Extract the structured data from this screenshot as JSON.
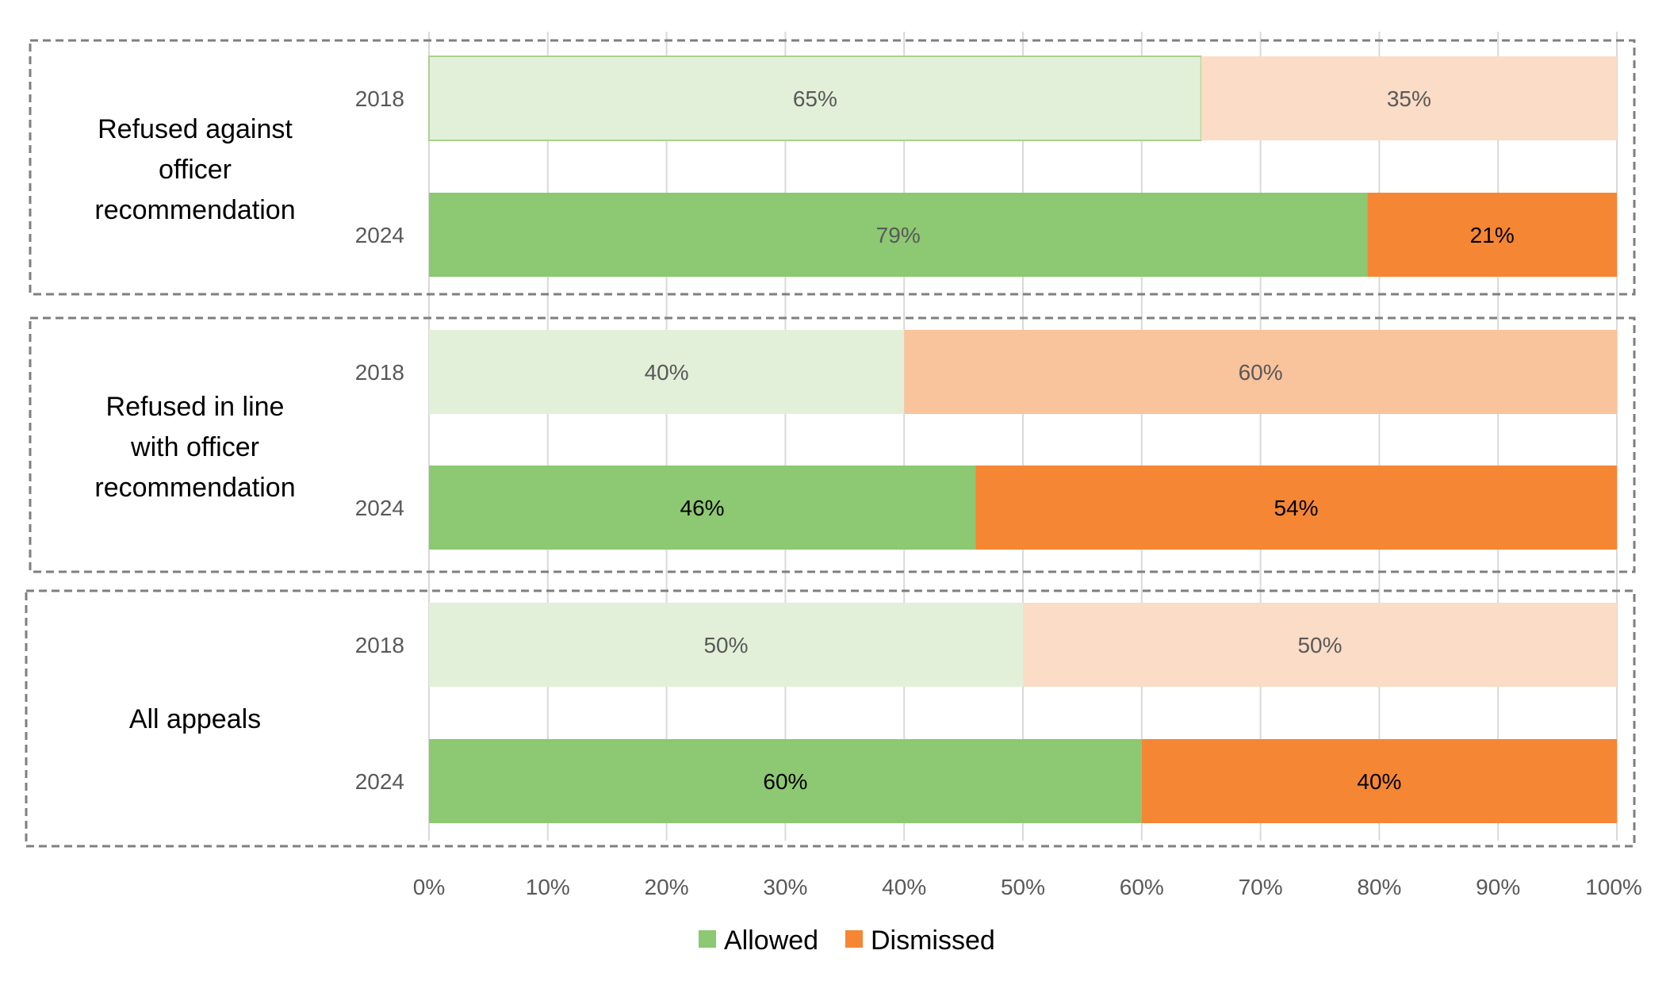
{
  "chart_data": {
    "type": "bar",
    "orientation": "horizontal",
    "stacked": "percent",
    "groups": [
      {
        "label": "Refused against officer recommendation",
        "lines": [
          "Refused against",
          "officer",
          "recommendation"
        ]
      },
      {
        "label": "Refused in line with officer recommendation",
        "lines": [
          "Refused in line",
          "with officer",
          "recommendation"
        ]
      },
      {
        "label": "All appeals",
        "lines": [
          "All appeals"
        ]
      }
    ],
    "rows": [
      {
        "group": 0,
        "year": "2018",
        "allowed": 65,
        "dismissed": 35,
        "allowed_label": "65%",
        "dismissed_label": "35%",
        "faded": true
      },
      {
        "group": 0,
        "year": "2024",
        "allowed": 79,
        "dismissed": 21,
        "allowed_label": "79%",
        "dismissed_label": "21%",
        "faded": false
      },
      {
        "group": 1,
        "year": "2018",
        "allowed": 40,
        "dismissed": 60,
        "allowed_label": "40%",
        "dismissed_label": "60%",
        "faded": true
      },
      {
        "group": 1,
        "year": "2024",
        "allowed": 46,
        "dismissed": 54,
        "allowed_label": "46%",
        "dismissed_label": "54%",
        "faded": false
      },
      {
        "group": 2,
        "year": "2018",
        "allowed": 50,
        "dismissed": 50,
        "allowed_label": "50%",
        "dismissed_label": "50%",
        "faded": true
      },
      {
        "group": 2,
        "year": "2024",
        "allowed": 60,
        "dismissed": 40,
        "allowed_label": "60%",
        "dismissed_label": "40%",
        "faded": false
      }
    ],
    "series": [
      {
        "name": "Allowed",
        "color": "#8dc872",
        "faded_color": "#e2f0d9",
        "faded_border": "#a9d18e"
      },
      {
        "name": "Dismissed",
        "color": "#f58634",
        "faded_color": "#fadcc7",
        "faded_color_alt": "#f9c39c"
      }
    ],
    "x_ticks": [
      "0%",
      "10%",
      "20%",
      "30%",
      "40%",
      "50%",
      "60%",
      "70%",
      "80%",
      "90%",
      "100%"
    ],
    "xlim": [
      0,
      100
    ],
    "grid": true,
    "legend": {
      "placement": "bottom",
      "items": [
        "Allowed",
        "Dismissed"
      ]
    }
  }
}
